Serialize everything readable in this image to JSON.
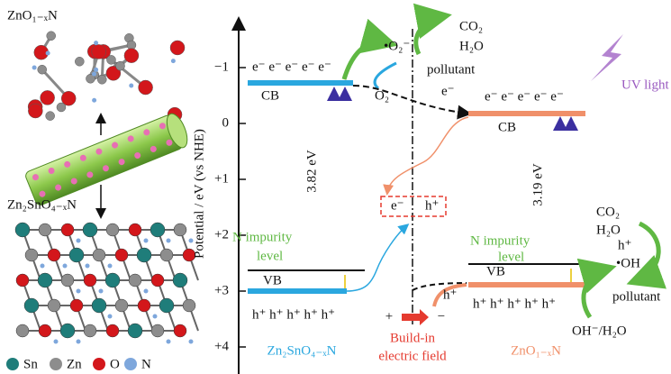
{
  "structures": {
    "top_label": "ZnO₁₋ₓN",
    "bottom_label": "Zn₂SnO₄₋ₓN",
    "legend": [
      "Sn",
      "Zn",
      "O",
      "N"
    ]
  },
  "axis": {
    "label": "Potential / eV (vs NHE)",
    "ticks": [
      "−1",
      "0",
      "+1",
      "+2",
      "+3",
      "+4"
    ]
  },
  "zn2sno4": {
    "electrons": "e⁻ e⁻ e⁻ e⁻ e⁻",
    "cb": "CB",
    "vb": "VB",
    "band_gap": "3.82 eV",
    "impurity": [
      "N impurity",
      "level"
    ],
    "holes": "h⁺ h⁺ h⁺ h⁺ h⁺",
    "name": "Zn₂SnO₄₋ₓN",
    "reaction": {
      "radical": "•O₂⁻",
      "products": [
        "CO₂",
        "H₂O"
      ],
      "pollutant": "pollutant",
      "electron": "e⁻",
      "oxygen": "O₂"
    }
  },
  "zno": {
    "electrons": "e⁻ e⁻ e⁻ e⁻ e⁻",
    "cb": "CB",
    "vb": "VB",
    "band_gap": "3.19 eV",
    "impurity": [
      "N impurity",
      "level"
    ],
    "holes": "h⁺ h⁺ h⁺ h⁺ h⁺",
    "name": "ZnO₁₋ₓN",
    "uv": "UV light",
    "transfer_hole": "h⁺",
    "reaction": {
      "products": [
        "CO₂",
        "H₂O"
      ],
      "hole": "h⁺",
      "radical": "•OH",
      "pollutant": "pollutant",
      "source": "OH⁻/H₂O"
    }
  },
  "junction": {
    "pair": [
      "e⁻",
      "h⁺"
    ],
    "field": {
      "plus": "+",
      "minus": "−",
      "label": [
        "Build-in",
        "electric field"
      ]
    }
  }
}
